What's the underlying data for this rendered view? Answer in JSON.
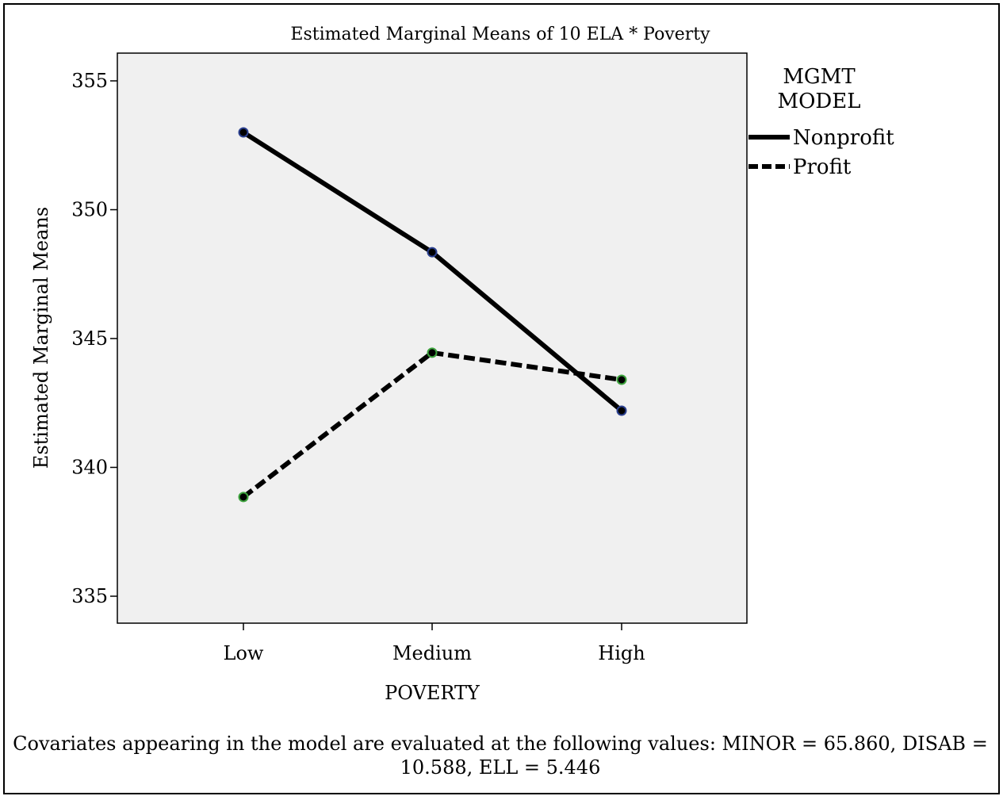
{
  "chart_data": {
    "type": "line",
    "title": "Estimated Marginal Means of 10 ELA * Poverty",
    "xlabel": "POVERTY",
    "ylabel": "Estimated Marginal Means",
    "categories": [
      "Low",
      "Medium",
      "High"
    ],
    "ylim": [
      334,
      356
    ],
    "yticks": [
      335,
      340,
      345,
      350,
      355
    ],
    "legend": {
      "title_line1": "MGMT",
      "title_line2": "MODEL",
      "position": "right"
    },
    "series": [
      {
        "name": "Nonprofit",
        "values": [
          353.0,
          348.35,
          342.2
        ],
        "style": "solid",
        "marker_color": "#2a3f8f"
      },
      {
        "name": "Profit",
        "values": [
          338.85,
          344.45,
          343.4
        ],
        "style": "dashed",
        "marker_color": "#3da33d"
      }
    ],
    "grid": false,
    "plot_background": "#f0f0f0",
    "footnote_line1": "Covariates appearing in the model are evaluated at the following values: MINOR = 65.860, DISAB =",
    "footnote_line2": "10.588, ELL = 5.446"
  }
}
